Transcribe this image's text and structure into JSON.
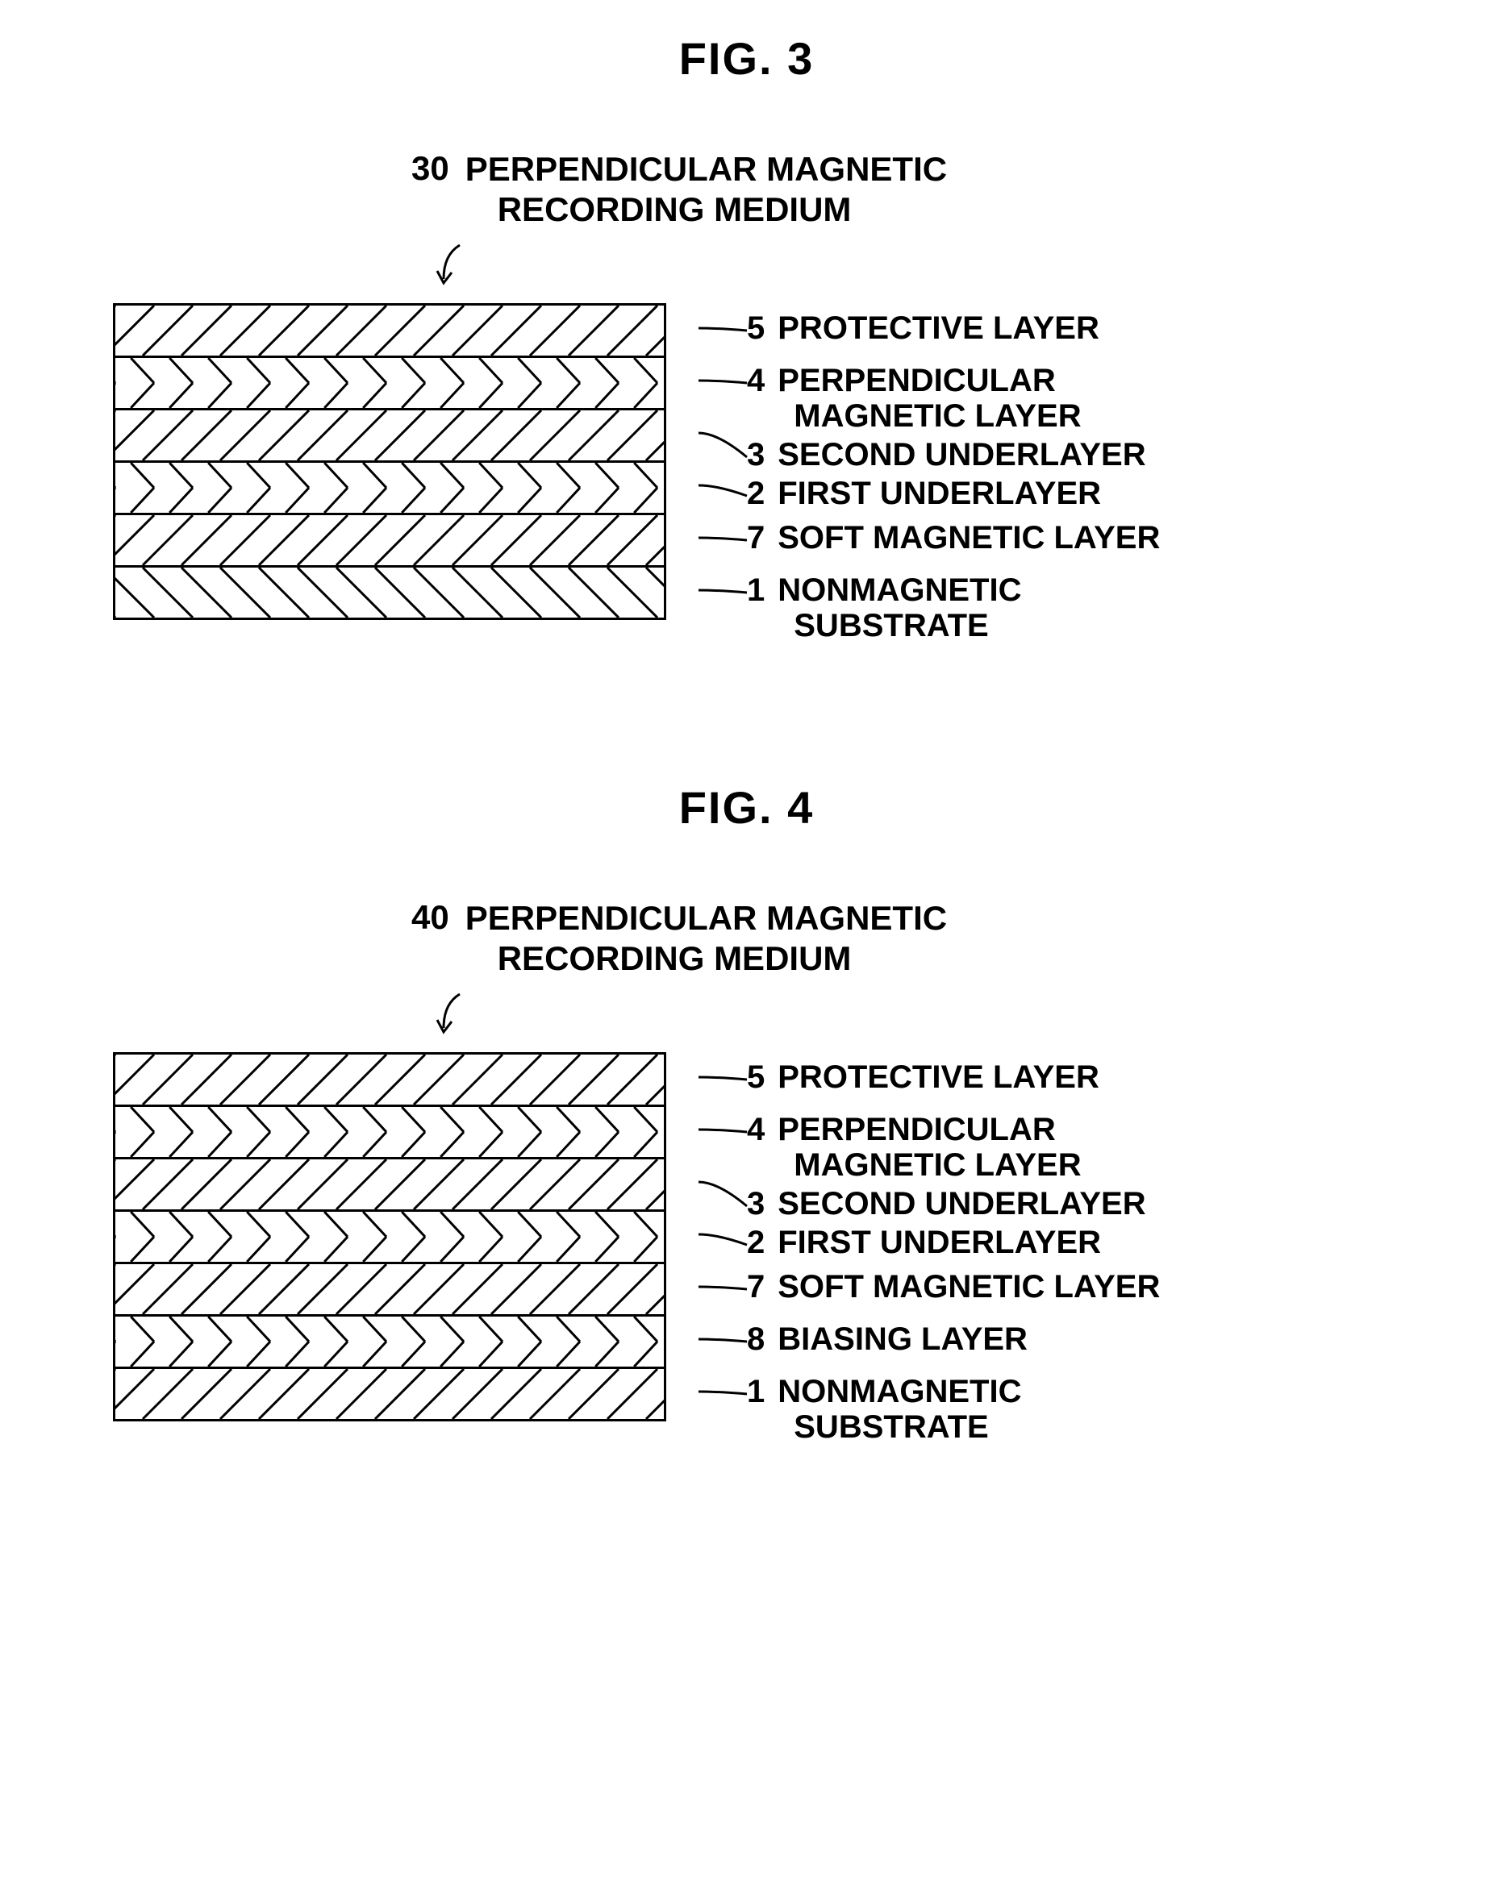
{
  "figures": [
    {
      "title": "FIG.  3",
      "header_num": "30",
      "header_caption_l1": "PERPENDICULAR MAGNETIC",
      "header_caption_l2": "RECORDING MEDIUM",
      "layers": [
        {
          "hatch": "fwd",
          "num": "5",
          "text": "PROTECTIVE LAYER",
          "twoLine": false,
          "text2": ""
        },
        {
          "hatch": "chev",
          "num": "4",
          "text": "PERPENDICULAR",
          "twoLine": true,
          "text2": "MAGNETIC LAYER"
        },
        {
          "hatch": "fwd",
          "num": "3",
          "text": "SECOND UNDERLAYER",
          "twoLine": false,
          "text2": ""
        },
        {
          "hatch": "chev",
          "num": "2",
          "text": "FIRST UNDERLAYER",
          "twoLine": false,
          "text2": ""
        },
        {
          "hatch": "fwd",
          "num": "7",
          "text": "SOFT MAGNETIC LAYER",
          "twoLine": false,
          "text2": ""
        },
        {
          "hatch": "back",
          "num": "1",
          "text": "NONMAGNETIC",
          "twoLine": true,
          "text2": "SUBSTRATE"
        }
      ],
      "colors": {
        "stroke": "#000000",
        "bg": "#ffffff"
      },
      "layer_height": 62,
      "stack_width": 680,
      "hatch_spacing": 48,
      "hatch_stroke": 3
    },
    {
      "title": "FIG.  4",
      "header_num": "40",
      "header_caption_l1": "PERPENDICULAR MAGNETIC",
      "header_caption_l2": "RECORDING MEDIUM",
      "layers": [
        {
          "hatch": "fwd",
          "num": "5",
          "text": "PROTECTIVE LAYER",
          "twoLine": false,
          "text2": ""
        },
        {
          "hatch": "chev",
          "num": "4",
          "text": "PERPENDICULAR",
          "twoLine": true,
          "text2": "MAGNETIC LAYER"
        },
        {
          "hatch": "fwd",
          "num": "3",
          "text": "SECOND UNDERLAYER",
          "twoLine": false,
          "text2": ""
        },
        {
          "hatch": "chev",
          "num": "2",
          "text": "FIRST UNDERLAYER",
          "twoLine": false,
          "text2": ""
        },
        {
          "hatch": "fwd",
          "num": "7",
          "text": "SOFT MAGNETIC LAYER",
          "twoLine": false,
          "text2": ""
        },
        {
          "hatch": "chev",
          "num": "8",
          "text": "BIASING LAYER",
          "twoLine": false,
          "text2": ""
        },
        {
          "hatch": "fwd",
          "num": "1",
          "text": "NONMAGNETIC",
          "twoLine": true,
          "text2": "SUBSTRATE"
        }
      ],
      "colors": {
        "stroke": "#000000",
        "bg": "#ffffff"
      },
      "layer_height": 62,
      "stack_width": 680,
      "hatch_spacing": 48,
      "hatch_stroke": 3
    }
  ]
}
